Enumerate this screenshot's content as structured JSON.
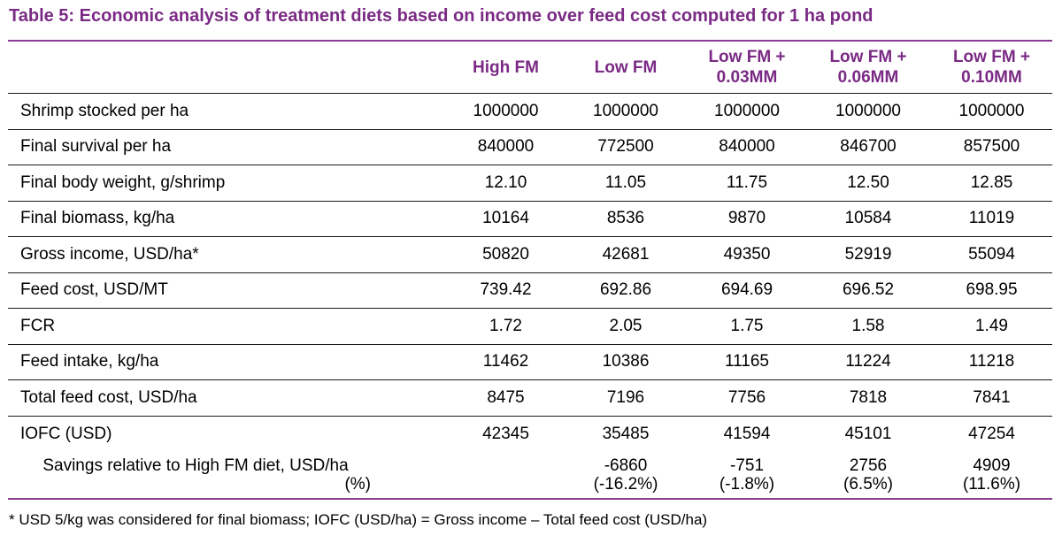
{
  "title": "Table 5: Economic analysis of treatment diets based on income over feed cost computed for 1 ha pond",
  "header": {
    "col1": "High FM",
    "col2": "Low FM",
    "col3_line1": "Low FM +",
    "col3_line2": "0.03MM",
    "col4_line1": "Low FM +",
    "col4_line2": "0.06MM",
    "col5_line1": "Low FM +",
    "col5_line2": "0.10MM"
  },
  "rows": [
    {
      "label": "Shrimp stocked per ha",
      "values": [
        "1000000",
        "1000000",
        "1000000",
        "1000000",
        "1000000"
      ]
    },
    {
      "label": "Final survival per ha",
      "values": [
        "840000",
        "772500",
        "840000",
        "846700",
        "857500"
      ]
    },
    {
      "label": "Final body weight, g/shrimp",
      "values": [
        "12.10",
        "11.05",
        "11.75",
        "12.50",
        "12.85"
      ]
    },
    {
      "label": "Final biomass, kg/ha",
      "values": [
        "10164",
        "8536",
        "9870",
        "10584",
        "11019"
      ]
    },
    {
      "label": "Gross income, USD/ha*",
      "values": [
        "50820",
        "42681",
        "49350",
        "52919",
        "55094"
      ]
    },
    {
      "label": "Feed cost, USD/MT",
      "values": [
        "739.42",
        "692.86",
        "694.69",
        "696.52",
        "698.95"
      ]
    },
    {
      "label": "FCR",
      "values": [
        "1.72",
        "2.05",
        "1.75",
        "1.58",
        "1.49"
      ]
    },
    {
      "label": "Feed intake, kg/ha",
      "values": [
        "11462",
        "10386",
        "11165",
        "11224",
        "11218"
      ]
    },
    {
      "label": "Total feed cost, USD/ha",
      "values": [
        "8475",
        "7196",
        "7756",
        "7818",
        "7841"
      ]
    },
    {
      "label": "IOFC (USD)",
      "values": [
        "42345",
        "35485",
        "41594",
        "45101",
        "47254"
      ]
    }
  ],
  "savings": {
    "label_line1": "Savings relative to High FM diet, USD/ha",
    "label_line2": "(%)",
    "values": [
      {
        "amount": "",
        "pct": ""
      },
      {
        "amount": "-6860",
        "pct": "(-16.2%)"
      },
      {
        "amount": "-751",
        "pct": "(-1.8%)"
      },
      {
        "amount": "2756",
        "pct": "(6.5%)"
      },
      {
        "amount": "4909",
        "pct": "(11.6%)"
      }
    ]
  },
  "footnote": "* USD 5/kg was considered for final biomass; IOFC (USD/ha) = Gross income – Total feed cost (USD/ha)",
  "colors": {
    "title": "#7a2a84",
    "rule": "#8a3c93"
  }
}
